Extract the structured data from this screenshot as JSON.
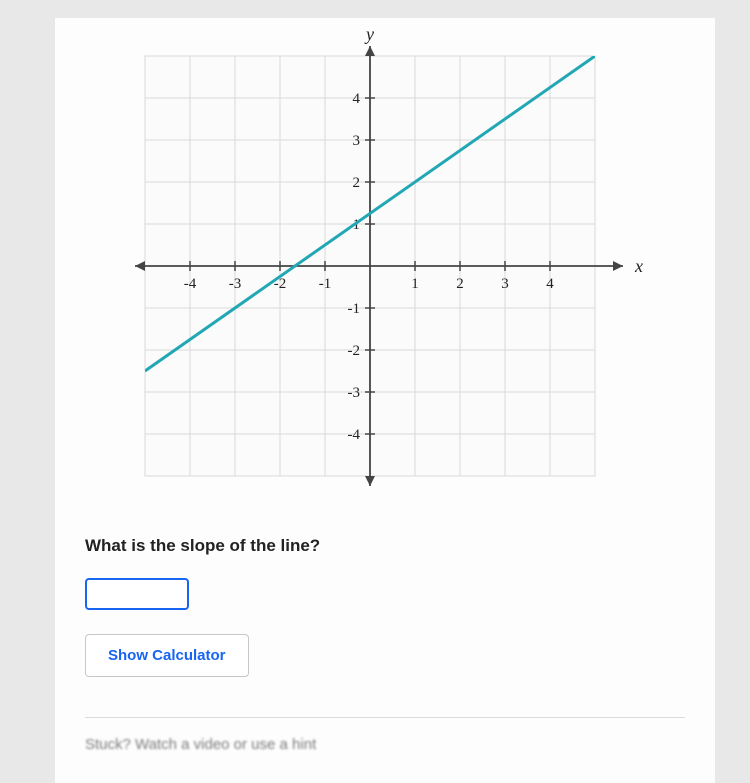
{
  "chart": {
    "type": "line",
    "background_color": "#fbfbfb",
    "grid_color": "#d9d9d9",
    "axis_color": "#444444",
    "line_color": "#22a7b5",
    "line_width": 3,
    "x_axis_label": "x",
    "y_axis_label": "y",
    "xlim": [
      -5,
      5
    ],
    "ylim": [
      -5,
      5
    ],
    "tick_step": 1,
    "x_tick_labels": [
      "-4",
      "-3",
      "-2",
      "-1",
      "1",
      "2",
      "3",
      "4"
    ],
    "y_tick_labels": [
      "-4",
      "-3",
      "-2",
      "-1",
      "1",
      "2",
      "3",
      "4"
    ],
    "tick_font_family": "Georgia, 'Times New Roman', serif",
    "tick_font_size": 15,
    "axis_label_font_style": "italic",
    "axis_label_font_family": "Georgia, 'Times New Roman', serif",
    "axis_label_font_size": 18,
    "line_points": [
      {
        "x": -5,
        "y": -2.5
      },
      {
        "x": 5,
        "y": 5
      }
    ]
  },
  "question_text": "What is the slope of the line?",
  "question_font_size": 17,
  "answer_value": "",
  "calc_button_label": "Show Calculator",
  "hint_text": "Stuck? Watch a video or use a hint",
  "colors": {
    "page_bg": "#fdfdfd",
    "body_bg": "#e8e8e8",
    "primary_blue": "#1865f2",
    "text": "#222222"
  }
}
